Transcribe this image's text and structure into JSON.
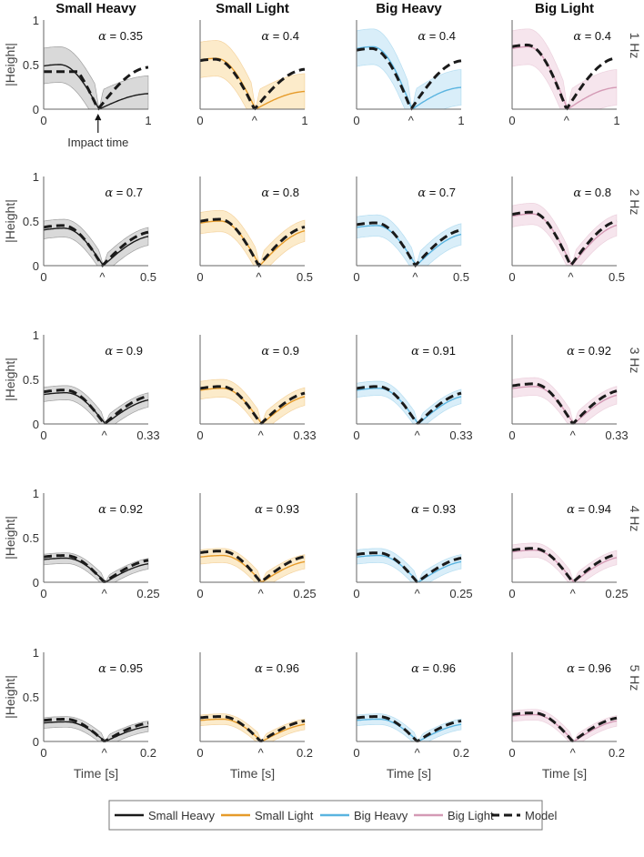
{
  "chart_data": {
    "type": "line",
    "columns": [
      "Small Heavy",
      "Small Light",
      "Big Heavy",
      "Big Light"
    ],
    "rows": [
      "1 Hz",
      "2 Hz",
      "3 Hz",
      "4 Hz",
      "5 Hz"
    ],
    "ylabel": "|Height|",
    "xlabel": "Time [s]",
    "yticks": [
      "0",
      "0.5",
      "1"
    ],
    "ylim": [
      0,
      1
    ],
    "xlim_per_row": [
      [
        0,
        1
      ],
      [
        0,
        0.5
      ],
      [
        0,
        0.33
      ],
      [
        0,
        0.25
      ],
      [
        0,
        0.2
      ]
    ],
    "xtick_right": [
      "1",
      "0.5",
      "0.33",
      "0.25",
      "0.2"
    ],
    "xtick_left": "0",
    "impact_marker": "^",
    "impact_annotation": "Impact time",
    "impact_phase_per_row": [
      0.52,
      0.56,
      0.58,
      0.58,
      0.58
    ],
    "alpha_symbol": "α",
    "alpha": [
      [
        "0.35",
        "0.4",
        "0.4",
        "0.4"
      ],
      [
        "0.7",
        "0.8",
        "0.7",
        "0.8"
      ],
      [
        "0.9",
        "0.9",
        "0.91",
        "0.92"
      ],
      [
        "0.92",
        "0.93",
        "0.93",
        "0.94"
      ],
      [
        "0.95",
        "0.96",
        "0.96",
        "0.96"
      ]
    ],
    "model_peak": [
      [
        0.42,
        0.56,
        0.68,
        0.72
      ],
      [
        0.45,
        0.52,
        0.48,
        0.6
      ],
      [
        0.38,
        0.42,
        0.42,
        0.45
      ],
      [
        0.3,
        0.35,
        0.33,
        0.38
      ],
      [
        0.25,
        0.28,
        0.28,
        0.32
      ]
    ],
    "mean_peak": [
      [
        0.5,
        0.57,
        0.7,
        0.7
      ],
      [
        0.42,
        0.5,
        0.45,
        0.58
      ],
      [
        0.35,
        0.4,
        0.4,
        0.42
      ],
      [
        0.27,
        0.3,
        0.3,
        0.36
      ],
      [
        0.22,
        0.25,
        0.25,
        0.3
      ]
    ],
    "band_halfwidth": [
      [
        0.2,
        0.2,
        0.2,
        0.2
      ],
      [
        0.1,
        0.12,
        0.12,
        0.12
      ],
      [
        0.08,
        0.1,
        0.08,
        0.1
      ],
      [
        0.06,
        0.08,
        0.08,
        0.08
      ],
      [
        0.06,
        0.06,
        0.06,
        0.06
      ]
    ],
    "series": [
      {
        "name": "Small Heavy",
        "color": "#1a1a1a",
        "fill": "#cfcfcf"
      },
      {
        "name": "Small Light",
        "color": "#e69b2a",
        "fill": "#fbe6bd"
      },
      {
        "name": "Big Heavy",
        "color": "#5ab4e0",
        "fill": "#d0eaf8"
      },
      {
        "name": "Big Light",
        "color": "#d49ab5",
        "fill": "#f4dfe8"
      }
    ],
    "model": {
      "name": "Model",
      "color": "#1a1a1a",
      "style": "dashed"
    },
    "legend_position": "bottom-center"
  }
}
